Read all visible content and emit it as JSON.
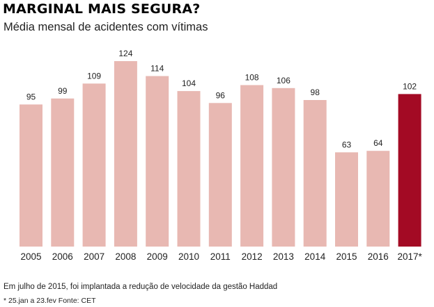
{
  "chart_data": {
    "type": "bar",
    "title": "MARGINAL MAIS SEGURA?",
    "subtitle": "Média mensal de acidentes com vítimas",
    "categories": [
      "2005",
      "2006",
      "2007",
      "2008",
      "2009",
      "2010",
      "2011",
      "2012",
      "2013",
      "2014",
      "2015",
      "2016",
      "2017*"
    ],
    "values": [
      95,
      99,
      109,
      124,
      114,
      104,
      96,
      108,
      106,
      98,
      63,
      64,
      102
    ],
    "ylim": [
      0,
      124
    ],
    "grid": false,
    "bar_color": "#e8b8b2",
    "highlight_color": "#a30a24",
    "highlight_index": 12
  },
  "footer": {
    "note": "Em julho de 2015, foi implantada a redução de velocidade da gestão Haddad",
    "source": "* 25.jan a 23.fev Fonte: CET"
  }
}
